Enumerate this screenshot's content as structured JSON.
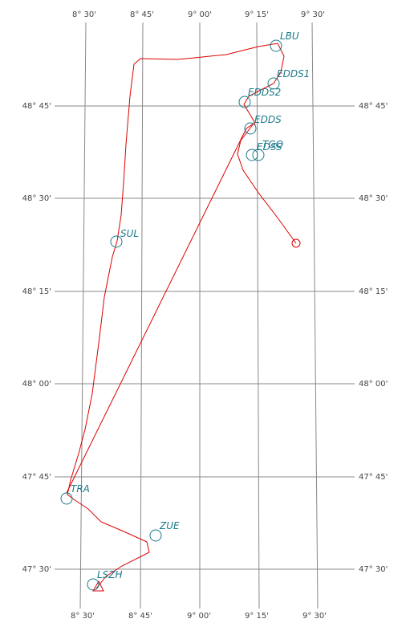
{
  "grid": {
    "longitudes": [
      "8° 30'",
      "8° 45'",
      "9° 00'",
      "9° 15'",
      "9° 30'"
    ],
    "latitudes": [
      "48° 45'",
      "48° 30'",
      "48° 15'",
      "48° 00'",
      "47° 45'",
      "47° 30'"
    ]
  },
  "waypoints": [
    "LBU",
    "EDDS1",
    "EDDS2",
    "EDDS",
    "TGO",
    "EDSS",
    "SUL",
    "TRA",
    "ZUE",
    "LSZH"
  ]
}
